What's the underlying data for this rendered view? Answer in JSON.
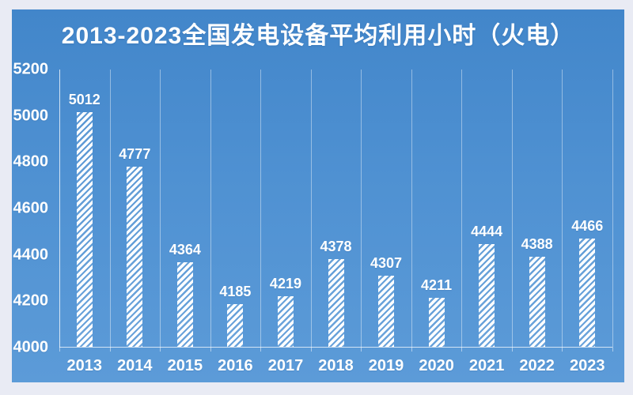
{
  "chart_data": {
    "type": "bar",
    "title": "2013-2023全国发电设备平均利用小时（火电）",
    "categories": [
      "2013",
      "2014",
      "2015",
      "2016",
      "2017",
      "2018",
      "2019",
      "2020",
      "2021",
      "2022",
      "2023"
    ],
    "values": [
      5012,
      4777,
      4364,
      4185,
      4219,
      4378,
      4307,
      4211,
      4444,
      4388,
      4466
    ],
    "xlabel": "",
    "ylabel": "",
    "ylim": [
      4000,
      5200
    ],
    "yticks": [
      4000,
      4200,
      4400,
      4600,
      4800,
      5000,
      5200
    ],
    "grid": "vertical-category-boundaries-only",
    "legend": "none",
    "bar_fill": "white-diagonal-hatch",
    "data_labels": "above-bars",
    "colors": {
      "panel_top": "#4286CA",
      "panel_bottom": "#5C9BD8",
      "text": "#FFFFFF",
      "bar": "#FFFFFF",
      "gridline": "rgba(255,255,255,0.42)",
      "axis_line": "rgba(255,255,255,0.72)",
      "outer_background": "#E9EBF4"
    }
  }
}
